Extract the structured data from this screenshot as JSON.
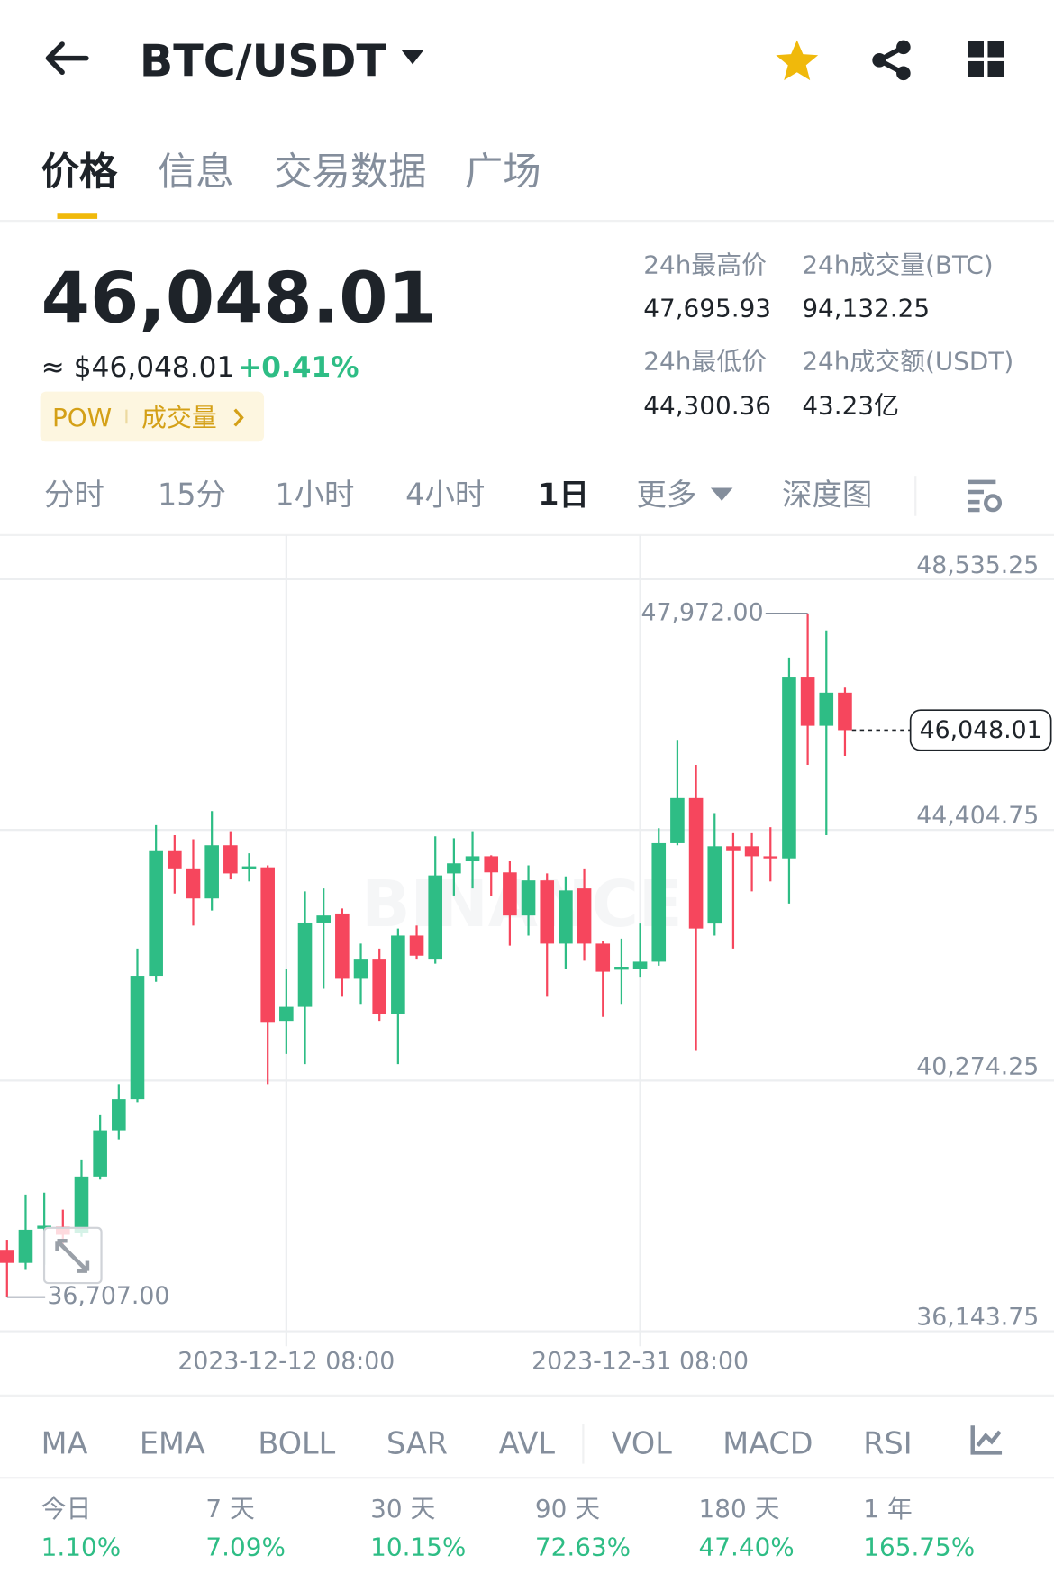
{
  "header": {
    "title": "BTC/USDT"
  },
  "tabs": [
    "价格",
    "信息",
    "交易数据",
    "广场"
  ],
  "price": {
    "last": "46,048.01",
    "usd": "≈ $46,048.01",
    "change": "+0.41%",
    "tags": [
      "POW",
      "成交量"
    ]
  },
  "stats": [
    {
      "label": "24h最高价",
      "value": "47,695.93"
    },
    {
      "label": "24h成交量(BTC)",
      "value": "94,132.25"
    },
    {
      "label": "24h最低价",
      "value": "44,300.36"
    },
    {
      "label": "24h成交额(USDT)",
      "value": "43.23亿"
    }
  ],
  "timeframes": [
    "分时",
    "15分",
    "1小时",
    "4小时",
    "1日",
    "更多",
    "深度图"
  ],
  "chart_data": {
    "type": "candlestick",
    "watermark": "BINANCE",
    "grid": true,
    "up_color": "#2ebd85",
    "down_color": "#f6465d",
    "categories": [
      null,
      null,
      null,
      null,
      null,
      null,
      null,
      null,
      null,
      null,
      null,
      null,
      null,
      null,
      null,
      "2023-12-12 08:00",
      null,
      null,
      null,
      null,
      null,
      null,
      null,
      null,
      null,
      null,
      null,
      null,
      null,
      null,
      null,
      null,
      null,
      null,
      "2023-12-31 08:00",
      null,
      null,
      null,
      null,
      null,
      null,
      null,
      null,
      null,
      null,
      null
    ],
    "open": [
      37485,
      37270,
      37833,
      37866,
      37766,
      38693,
      39454,
      39966,
      42001,
      44069,
      43771,
      43275,
      44151,
      43754,
      43788,
      41257,
      41488,
      42878,
      43027,
      41951,
      42282,
      41372,
      42663,
      42282,
      43688,
      43887,
      43970,
      43705,
      42994,
      43573,
      42530,
      43440,
      42530,
      42100,
      42117,
      42233,
      44185,
      44929,
      42861,
      44135,
      44135,
      43970,
      43936,
      46930,
      46120,
      46666
    ],
    "high": [
      37651,
      38395,
      38428,
      38147,
      38974,
      39718,
      40215,
      42448,
      44482,
      44317,
      44251,
      44714,
      44383,
      44019,
      43821,
      42117,
      43391,
      43440,
      43109,
      42530,
      42448,
      42779,
      42828,
      44300,
      44267,
      44383,
      43986,
      43887,
      43821,
      43688,
      43639,
      43771,
      42580,
      42613,
      42861,
      44433,
      45888,
      45475,
      44681,
      44350,
      44350,
      44449,
      47245,
      47972,
      47691,
      46749
    ],
    "low": [
      36707,
      37154,
      37237,
      37568,
      37700,
      38643,
      39305,
      39917,
      41902,
      43357,
      42828,
      43076,
      43589,
      43556,
      40215,
      40711,
      40545,
      41786,
      41654,
      41538,
      41257,
      40545,
      42282,
      42200,
      43324,
      43440,
      43308,
      42497,
      42663,
      41654,
      42117,
      42249,
      41323,
      41538,
      41985,
      42166,
      44151,
      40777,
      42663,
      42448,
      43391,
      43556,
      43192,
      45475,
      44317,
      45624
    ],
    "close": [
      37270,
      37816,
      37882,
      37733,
      38693,
      39454,
      39966,
      42001,
      44069,
      43771,
      43275,
      44151,
      43688,
      43804,
      41240,
      41488,
      42878,
      42994,
      41951,
      42282,
      41372,
      42663,
      42332,
      43655,
      43854,
      43970,
      43705,
      42994,
      43573,
      42530,
      43407,
      42530,
      42067,
      42150,
      42233,
      44185,
      44929,
      42779,
      44135,
      44069,
      43970,
      43936,
      46930,
      46120,
      46666,
      46048.01
    ],
    "ylim": [
      35416,
      49263
    ],
    "yticks": [
      {
        "value": 48535.25,
        "label": "48,535.25"
      },
      {
        "value": 44404.75,
        "label": "44,404.75"
      },
      {
        "value": 40274.25,
        "label": "40,274.25"
      },
      {
        "value": 36143.75,
        "label": "36,143.75"
      }
    ],
    "annotations": [
      {
        "value": 47972,
        "label": "47,972.00"
      },
      {
        "value": 36707,
        "label": "36,707.00"
      }
    ],
    "last_price": {
      "value": 46048.01,
      "label": "46,048.01"
    }
  },
  "indicators": [
    "MA",
    "EMA",
    "BOLL",
    "SAR",
    "AVL",
    "VOL",
    "MACD",
    "RSI"
  ],
  "performance": [
    {
      "label": "今日",
      "value": "1.10%"
    },
    {
      "label": "7 天",
      "value": "7.09%"
    },
    {
      "label": "30 天",
      "value": "10.15%"
    },
    {
      "label": "90 天",
      "value": "72.63%"
    },
    {
      "label": "180 天",
      "value": "47.40%"
    },
    {
      "label": "1 年",
      "value": "165.75%"
    }
  ]
}
